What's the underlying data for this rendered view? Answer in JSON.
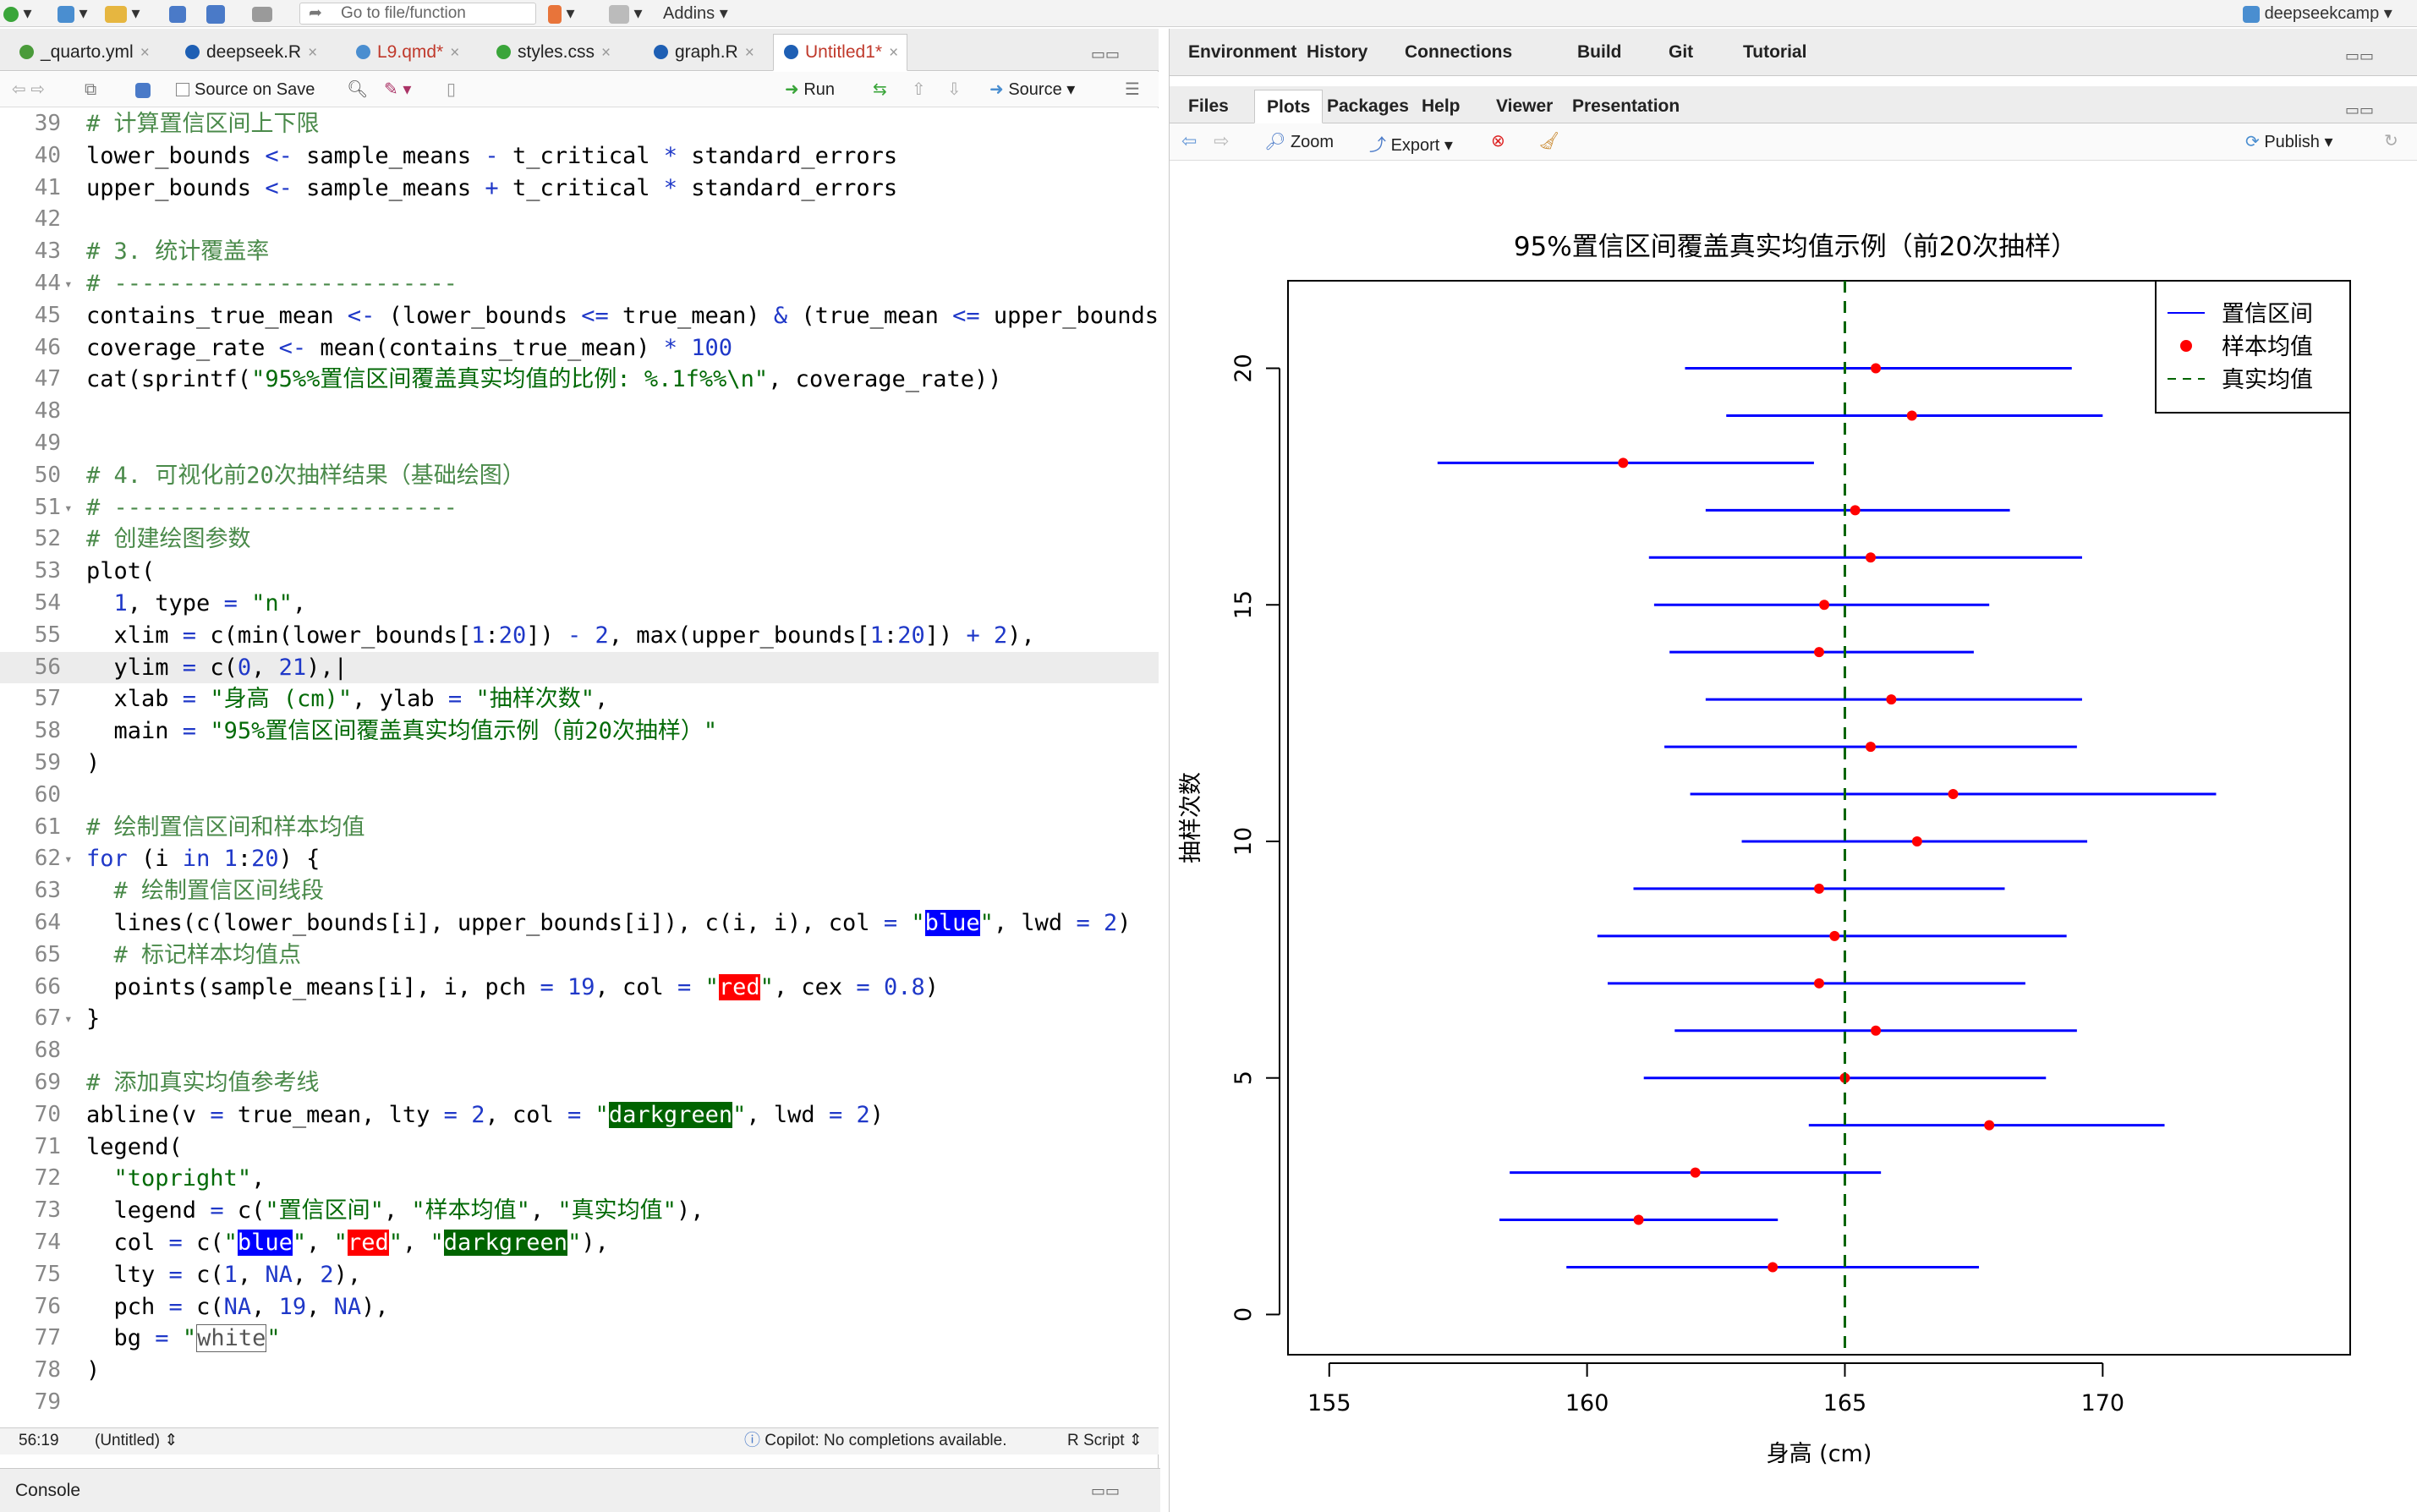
{
  "toolbar": {
    "goto_placeholder": "Go to file/function",
    "addins_label": "Addins",
    "project_label": "deepseekcamp"
  },
  "file_tabs": [
    {
      "label": "_quarto.yml",
      "color": "#4a9b3a",
      "dirty": false,
      "active": false
    },
    {
      "label": "deepseek.R",
      "color": "#1e5fb4",
      "dirty": false,
      "active": false
    },
    {
      "label": "L9.qmd*",
      "color": "#4a8ed0",
      "dirty": true,
      "active": false
    },
    {
      "label": "styles.css",
      "color": "#3aa53a",
      "dirty": false,
      "active": false
    },
    {
      "label": "graph.R",
      "color": "#1e5fb4",
      "dirty": false,
      "active": false
    },
    {
      "label": "Untitled1*",
      "color": "#1e5fb4",
      "dirty": true,
      "active": true
    }
  ],
  "editor_bar": {
    "source_on_save": "Source on Save",
    "run": "Run",
    "source": "Source"
  },
  "code_lines": [
    {
      "n": "39",
      "fold": false,
      "html": "<span class=\"cm\"># 计算置信区间上下限</span>"
    },
    {
      "n": "40",
      "fold": false,
      "html": "lower_bounds <span class=\"kw\">&lt;-</span> sample_means <span class=\"kw\">-</span> t_critical <span class=\"kw\">*</span> standard_errors"
    },
    {
      "n": "41",
      "fold": false,
      "html": "upper_bounds <span class=\"kw\">&lt;-</span> sample_means <span class=\"kw\">+</span> t_critical <span class=\"kw\">*</span> standard_errors"
    },
    {
      "n": "42",
      "fold": false,
      "html": ""
    },
    {
      "n": "43",
      "fold": false,
      "html": "<span class=\"cm\"># 3. 统计覆盖率</span>"
    },
    {
      "n": "44",
      "fold": true,
      "html": "<span class=\"cm\"># -------------------------</span>"
    },
    {
      "n": "45",
      "fold": false,
      "html": "contains_true_mean <span class=\"kw\">&lt;-</span> (lower_bounds <span class=\"kw\">&lt;=</span> true_mean) <span class=\"kw\">&amp;</span> (true_mean <span class=\"kw\">&lt;=</span> upper_bounds)"
    },
    {
      "n": "46",
      "fold": false,
      "html": "coverage_rate <span class=\"kw\">&lt;-</span> mean(contains_true_mean) <span class=\"kw\">*</span> <span class=\"nm\">100</span>"
    },
    {
      "n": "47",
      "fold": false,
      "html": "cat(sprintf(<span class=\"st\">\"95%%置信区间覆盖真实均值的比例: %.1f%%\\n\"</span>, coverage_rate))"
    },
    {
      "n": "48",
      "fold": false,
      "html": ""
    },
    {
      "n": "49",
      "fold": false,
      "html": ""
    },
    {
      "n": "50",
      "fold": false,
      "html": "<span class=\"cm\"># 4. 可视化前20次抽样结果（基础绘图）</span>"
    },
    {
      "n": "51",
      "fold": true,
      "html": "<span class=\"cm\"># -------------------------</span>"
    },
    {
      "n": "52",
      "fold": false,
      "html": "<span class=\"cm\"># 创建绘图参数</span>"
    },
    {
      "n": "53",
      "fold": false,
      "html": "plot("
    },
    {
      "n": "54",
      "fold": false,
      "html": "  <span class=\"nm\">1</span>, type <span class=\"kw\">=</span> <span class=\"st\">\"n\"</span>,"
    },
    {
      "n": "55",
      "fold": false,
      "html": "  xlim <span class=\"kw\">=</span> c(min(lower_bounds[<span class=\"nm\">1</span>:<span class=\"nm\">20</span>]) <span class=\"kw\">-</span> <span class=\"nm\">2</span>, max(upper_bounds[<span class=\"nm\">1</span>:<span class=\"nm\">20</span>]) <span class=\"kw\">+</span> <span class=\"nm\">2</span>),"
    },
    {
      "n": "56",
      "fold": false,
      "cur": true,
      "html": "  ylim <span class=\"kw\">=</span> c(<span class=\"nm\">0</span>, <span class=\"nm\">21</span>),|"
    },
    {
      "n": "57",
      "fold": false,
      "html": "  xlab <span class=\"kw\">=</span> <span class=\"st\">\"身高 (cm)\"</span>, ylab <span class=\"kw\">=</span> <span class=\"st\">\"抽样次数\"</span>,"
    },
    {
      "n": "58",
      "fold": false,
      "html": "  main <span class=\"kw\">=</span> <span class=\"st\">\"95%置信区间覆盖真实均值示例（前20次抽样）\"</span>"
    },
    {
      "n": "59",
      "fold": false,
      "html": ")"
    },
    {
      "n": "60",
      "fold": false,
      "html": ""
    },
    {
      "n": "61",
      "fold": false,
      "html": "<span class=\"cm\"># 绘制置信区间和样本均值</span>"
    },
    {
      "n": "62",
      "fold": true,
      "html": "<span class=\"kw\">for</span> (i <span class=\"kw\">in</span> <span class=\"nm\">1</span>:<span class=\"nm\">20</span>) {"
    },
    {
      "n": "63",
      "fold": false,
      "html": "  <span class=\"cm\"># 绘制置信区间线段</span>"
    },
    {
      "n": "64",
      "fold": false,
      "html": "  lines(c(lower_bounds[i], upper_bounds[i]), c(i, i), col <span class=\"kw\">=</span> <span class=\"st\">\"<span class=\"hl-blue\">blue</span>\"</span>, lwd <span class=\"kw\">=</span> <span class=\"nm\">2</span>)"
    },
    {
      "n": "65",
      "fold": false,
      "html": "  <span class=\"cm\"># 标记样本均值点</span>"
    },
    {
      "n": "66",
      "fold": false,
      "html": "  points(sample_means[i], i, pch <span class=\"kw\">=</span> <span class=\"nm\">19</span>, col <span class=\"kw\">=</span> <span class=\"st\">\"<span class=\"hl-red\">red</span>\"</span>, cex <span class=\"kw\">=</span> <span class=\"nm\">0.8</span>)"
    },
    {
      "n": "67",
      "fold": true,
      "html": "}"
    },
    {
      "n": "68",
      "fold": false,
      "html": ""
    },
    {
      "n": "69",
      "fold": false,
      "html": "<span class=\"cm\"># 添加真实均值参考线</span>"
    },
    {
      "n": "70",
      "fold": false,
      "html": "abline(v <span class=\"kw\">=</span> true_mean, lty <span class=\"kw\">=</span> <span class=\"nm\">2</span>, col <span class=\"kw\">=</span> <span class=\"st\">\"<span class=\"hl-green\">darkgreen</span>\"</span>, lwd <span class=\"kw\">=</span> <span class=\"nm\">2</span>)"
    },
    {
      "n": "71",
      "fold": false,
      "html": "legend("
    },
    {
      "n": "72",
      "fold": false,
      "html": "  <span class=\"st\">\"topright\"</span>,"
    },
    {
      "n": "73",
      "fold": false,
      "html": "  legend <span class=\"kw\">=</span> c(<span class=\"st\">\"置信区间\"</span>, <span class=\"st\">\"样本均值\"</span>, <span class=\"st\">\"真实均值\"</span>),"
    },
    {
      "n": "74",
      "fold": false,
      "html": "  col <span class=\"kw\">=</span> c(<span class=\"st\">\"<span class=\"hl-blue\">blue</span>\"</span>, <span class=\"st\">\"<span class=\"hl-red\">red</span>\"</span>, <span class=\"st\">\"<span class=\"hl-green\">darkgreen</span>\"</span>),"
    },
    {
      "n": "75",
      "fold": false,
      "html": "  lty <span class=\"kw\">=</span> c(<span class=\"nm\">1</span>, <span class=\"nm\">NA</span>, <span class=\"nm\">2</span>),"
    },
    {
      "n": "76",
      "fold": false,
      "html": "  pch <span class=\"kw\">=</span> c(<span class=\"nm\">NA</span>, <span class=\"nm\">19</span>, <span class=\"nm\">NA</span>),"
    },
    {
      "n": "77",
      "fold": false,
      "html": "  bg <span class=\"kw\">=</span> <span class=\"st\">\"<span class=\"hl-white\">white</span>\"</span>"
    },
    {
      "n": "78",
      "fold": false,
      "html": ")"
    },
    {
      "n": "79",
      "fold": false,
      "html": ""
    }
  ],
  "status_bar": {
    "position": "56:19",
    "scope": "(Untitled)",
    "copilot": "Copilot: No completions available.",
    "filetype": "R Script"
  },
  "console": {
    "label": "Console"
  },
  "right_pane": {
    "top_tabs": [
      "Environment",
      "History",
      "Connections",
      "Build",
      "Git",
      "Tutorial"
    ],
    "bottom_tabs": [
      "Files",
      "Plots",
      "Packages",
      "Help",
      "Viewer",
      "Presentation"
    ],
    "active_bottom_tab": "Plots",
    "zoom": "Zoom",
    "export": "Export",
    "publish": "Publish"
  },
  "chart_data": {
    "type": "line",
    "title": "95%置信区间覆盖真实均值示例（前20次抽样）",
    "xlabel": "身高 (cm)",
    "ylabel": "抽样次数",
    "xlim": [
      154.2,
      174.8
    ],
    "ylim": [
      -0.85,
      21.85
    ],
    "xticks": [
      155,
      160,
      165,
      170
    ],
    "yticks": [
      0,
      5,
      10,
      15,
      20
    ],
    "true_mean": 165,
    "intervals": [
      {
        "i": 1,
        "lower": 159.6,
        "upper": 167.6,
        "mean": 163.6
      },
      {
        "i": 2,
        "lower": 158.3,
        "upper": 163.7,
        "mean": 161.0
      },
      {
        "i": 3,
        "lower": 158.5,
        "upper": 165.7,
        "mean": 162.1
      },
      {
        "i": 4,
        "lower": 164.3,
        "upper": 171.2,
        "mean": 167.8
      },
      {
        "i": 5,
        "lower": 161.1,
        "upper": 168.9,
        "mean": 165.0
      },
      {
        "i": 6,
        "lower": 161.7,
        "upper": 169.5,
        "mean": 165.6
      },
      {
        "i": 7,
        "lower": 160.4,
        "upper": 168.5,
        "mean": 164.5
      },
      {
        "i": 8,
        "lower": 160.2,
        "upper": 169.3,
        "mean": 164.8
      },
      {
        "i": 9,
        "lower": 160.9,
        "upper": 168.1,
        "mean": 164.5
      },
      {
        "i": 10,
        "lower": 163.0,
        "upper": 169.7,
        "mean": 166.4
      },
      {
        "i": 11,
        "lower": 162.0,
        "upper": 172.2,
        "mean": 167.1
      },
      {
        "i": 12,
        "lower": 161.5,
        "upper": 169.5,
        "mean": 165.5
      },
      {
        "i": 13,
        "lower": 162.3,
        "upper": 169.6,
        "mean": 165.9
      },
      {
        "i": 14,
        "lower": 161.6,
        "upper": 167.5,
        "mean": 164.5
      },
      {
        "i": 15,
        "lower": 161.3,
        "upper": 167.8,
        "mean": 164.6
      },
      {
        "i": 16,
        "lower": 161.2,
        "upper": 169.6,
        "mean": 165.5
      },
      {
        "i": 17,
        "lower": 162.3,
        "upper": 168.2,
        "mean": 165.2
      },
      {
        "i": 18,
        "lower": 157.1,
        "upper": 164.4,
        "mean": 160.7
      },
      {
        "i": 19,
        "lower": 162.7,
        "upper": 170.0,
        "mean": 166.3
      },
      {
        "i": 20,
        "lower": 161.9,
        "upper": 169.4,
        "mean": 165.6
      }
    ],
    "legend": {
      "position": "top-right",
      "entries": [
        "置信区间",
        "样本均值",
        "真实均值"
      ],
      "colors": [
        "#0000ff",
        "#ff0000",
        "#006400"
      ]
    },
    "grid": false
  }
}
